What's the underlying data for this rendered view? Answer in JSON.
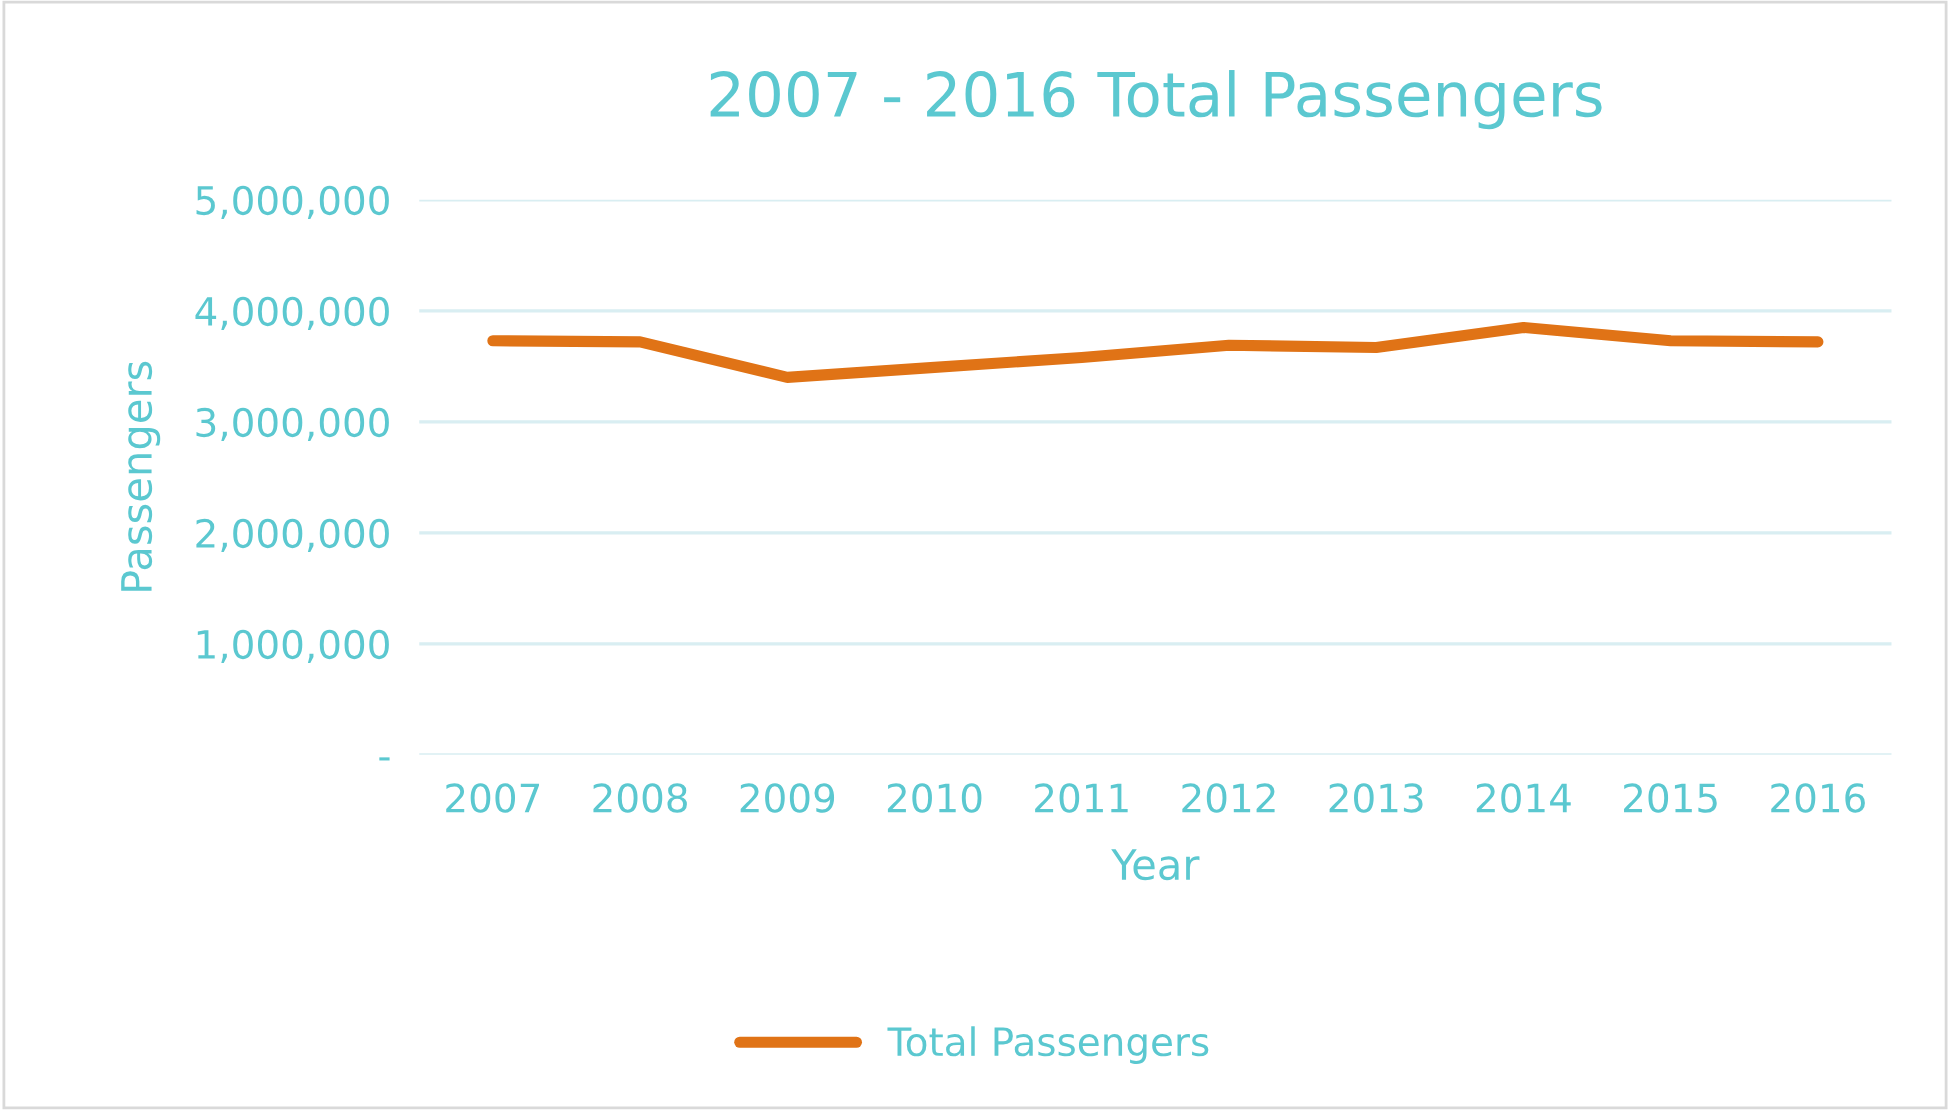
{
  "chart_data": {
    "type": "line",
    "title": "2007 - 2016 Total Passengers",
    "xlabel": "Year",
    "ylabel": "Passengers",
    "categories": [
      "2007",
      "2008",
      "2009",
      "2010",
      "2011",
      "2012",
      "2013",
      "2014",
      "2015",
      "2016"
    ],
    "series": [
      {
        "name": "Total Passengers",
        "color": "#e07316",
        "values": [
          3730000,
          3720000,
          3400000,
          3490000,
          3580000,
          3690000,
          3670000,
          3850000,
          3730000,
          3720000
        ]
      }
    ],
    "ylim": [
      0,
      5000000
    ],
    "yticks": [
      {
        "value": 0,
        "label": "-"
      },
      {
        "value": 1000000,
        "label": "1,000,000"
      },
      {
        "value": 2000000,
        "label": "2,000,000"
      },
      {
        "value": 3000000,
        "label": "3,000,000"
      },
      {
        "value": 4000000,
        "label": "4,000,000"
      },
      {
        "value": 5000000,
        "label": "5,000,000"
      }
    ],
    "grid": "y",
    "legend": "bottom",
    "marker": "none",
    "line_style": "solid"
  }
}
